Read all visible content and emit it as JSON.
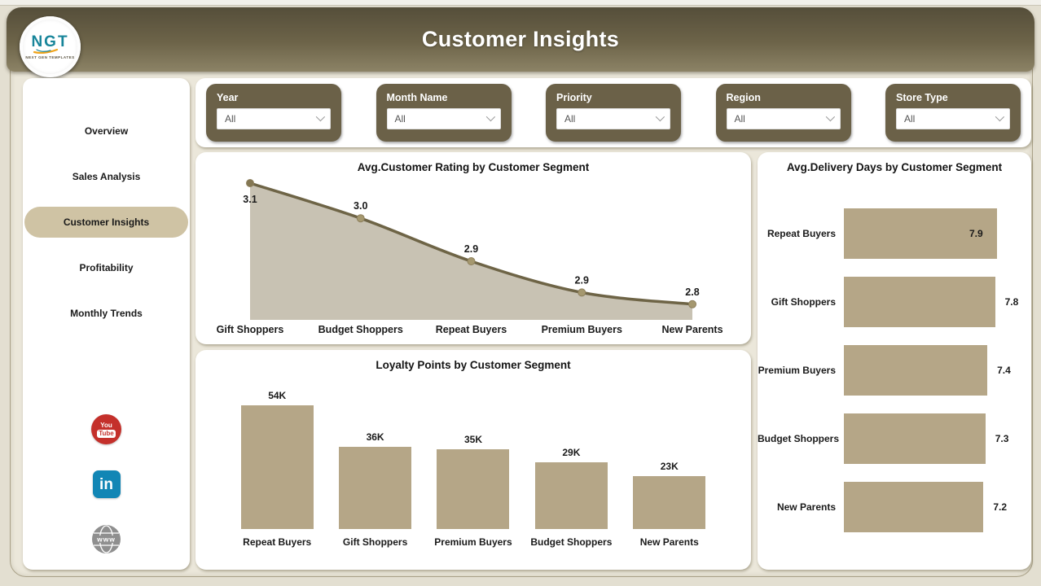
{
  "header": {
    "title": "Customer Insights",
    "logo_text": "NGT",
    "logo_subtext": "NEXT GEN TEMPLATES"
  },
  "sidebar": {
    "items": [
      {
        "label": "Overview",
        "active": false
      },
      {
        "label": "Sales Analysis",
        "active": false
      },
      {
        "label": "Customer Insights",
        "active": true
      },
      {
        "label": "Profitability",
        "active": false
      },
      {
        "label": "Monthly Trends",
        "active": false
      }
    ],
    "social": [
      {
        "name": "youtube",
        "you": "You",
        "tube": "Tube"
      },
      {
        "name": "linkedin",
        "text": "in"
      },
      {
        "name": "website",
        "text": "www"
      }
    ]
  },
  "filters": [
    {
      "label": "Year",
      "value": "All"
    },
    {
      "label": "Month Name",
      "value": "All"
    },
    {
      "label": "Priority",
      "value": "All"
    },
    {
      "label": "Region",
      "value": "All"
    },
    {
      "label": "Store Type",
      "value": "All"
    }
  ],
  "chart_data": [
    {
      "type": "area",
      "title": "Avg.Customer Rating by Customer Segment",
      "categories": [
        "Gift Shoppers",
        "Budget Shoppers",
        "Repeat Buyers",
        "Premium Buyers",
        "New Parents"
      ],
      "values": [
        3.1,
        3.0,
        2.9,
        2.9,
        2.8
      ],
      "value_labels": [
        "3.1",
        "3.0",
        "2.9",
        "2.9",
        "2.8"
      ],
      "value_estimates": [
        3.11,
        3.02,
        2.91,
        2.83,
        2.8
      ],
      "ylim": [
        2.76,
        3.11
      ],
      "xlabel": "Customer Segment",
      "ylabel": "Avg.Customer Rating",
      "grid": false,
      "legend": false
    },
    {
      "type": "bar",
      "title": "Loyalty Points by Customer Segment",
      "categories": [
        "Repeat Buyers",
        "Gift Shoppers",
        "Premium Buyers",
        "Budget Shoppers",
        "New Parents"
      ],
      "values": [
        54000,
        36000,
        35000,
        29000,
        23000
      ],
      "value_labels": [
        "54K",
        "36K",
        "35K",
        "29K",
        "23K"
      ],
      "ylim": [
        0,
        54000
      ],
      "xlabel": "Customer Segment",
      "ylabel": "Loyalty Points",
      "grid": false,
      "legend": false
    },
    {
      "type": "bar-horizontal",
      "title": "Avg.Delivery Days by Customer Segment",
      "categories": [
        "Repeat Buyers",
        "Gift Shoppers",
        "Premium Buyers",
        "Budget Shoppers",
        "New Parents"
      ],
      "values": [
        7.9,
        7.8,
        7.4,
        7.3,
        7.2
      ],
      "value_labels": [
        "7.9",
        "7.8",
        "7.4",
        "7.3",
        "7.2"
      ],
      "xlim": [
        0,
        7.9
      ],
      "xlabel": "Avg.Delivery Days",
      "ylabel": "Customer Segment",
      "grid": false,
      "legend": false
    }
  ],
  "colors": {
    "page_background": "#e3dfd1",
    "canvas_cream": "#ebe7da",
    "header_dark": "#554e3a",
    "header_light": "#8c8366",
    "slicer_background": "#6b6148",
    "active_pill": "#cfc3a4",
    "bar_fill": "#b5a687",
    "line": "#6e6446",
    "area_fill": "#c8c2b3",
    "marker": "#a5986f",
    "marker_first": "#847753",
    "text_dark": "#1a1a1a",
    "youtube_red": "#c4302b",
    "linkedin_blue": "#1286b5",
    "globe_gray": "#8f8f8f",
    "logo_teal": "#18859a",
    "logo_orange": "#f0a41c"
  }
}
